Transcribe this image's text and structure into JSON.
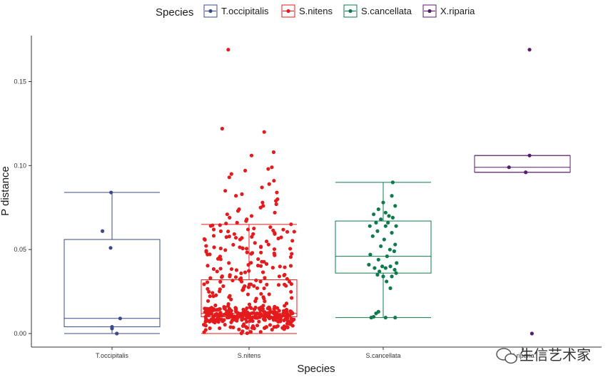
{
  "chart_data": {
    "type": "boxplot",
    "xlabel": "Species",
    "ylabel": "P distance",
    "ylim": [
      0.0,
      0.175
    ],
    "yticks": [
      "0.00",
      "0.05",
      "0.10",
      "0.15"
    ],
    "ytick_values": [
      0.0,
      0.05,
      0.1,
      0.15
    ],
    "legend": {
      "title": "Species",
      "position": "top"
    },
    "grid": false,
    "categories": [
      "T.occipitalis",
      "S.nitens",
      "S.cancellata",
      "X.riparia"
    ],
    "series": [
      {
        "name": "T.occipitalis",
        "color": "#3b4a8a",
        "box": {
          "whisker_low": 0.0,
          "q1": 0.004,
          "median": 0.009,
          "q3": 0.056,
          "whisker_high": 0.084
        },
        "points": [
          [
            -0.02,
            0.084
          ],
          [
            -0.2,
            0.061
          ],
          [
            -0.03,
            0.051
          ],
          [
            0.17,
            0.009
          ],
          [
            0.0,
            0.004
          ],
          [
            0.0,
            0.003
          ],
          [
            0.1,
            0.0
          ]
        ]
      },
      {
        "name": "S.nitens",
        "color": "#e41a1c",
        "box": {
          "whisker_low": 0.0,
          "q1": 0.01,
          "median": 0.012,
          "q3": 0.032,
          "whisker_high": 0.065
        },
        "outliers": [
          0.169,
          0.122,
          0.12,
          0.108,
          0.106,
          0.099,
          0.098,
          0.097,
          0.095,
          0.093,
          0.091,
          0.089,
          0.087,
          0.085,
          0.084,
          0.083,
          0.082,
          0.08,
          0.079,
          0.078,
          0.077,
          0.076,
          0.075,
          0.074,
          0.073,
          0.072,
          0.071,
          0.07,
          0.069,
          0.068,
          0.067,
          0.066
        ],
        "n_points": 430
      },
      {
        "name": "S.cancellata",
        "color": "#0f7a4c",
        "box": {
          "whisker_low": 0.0095,
          "q1": 0.036,
          "median": 0.046,
          "q3": 0.067,
          "whisker_high": 0.09
        },
        "points": [
          [
            0.2,
            0.09
          ],
          [
            0.18,
            0.082
          ],
          [
            0.0,
            0.078
          ],
          [
            0.25,
            0.076
          ],
          [
            -0.1,
            0.074
          ],
          [
            0.05,
            0.072
          ],
          [
            -0.2,
            0.071
          ],
          [
            0.12,
            0.07
          ],
          [
            0.2,
            0.069
          ],
          [
            -0.05,
            0.068
          ],
          [
            -0.15,
            0.066
          ],
          [
            0.1,
            0.066
          ],
          [
            -0.28,
            0.064
          ],
          [
            0.05,
            0.064
          ],
          [
            0.27,
            0.064
          ],
          [
            -0.12,
            0.061
          ],
          [
            0.18,
            0.06
          ],
          [
            -0.22,
            0.058
          ],
          [
            0.02,
            0.056
          ],
          [
            0.25,
            0.053
          ],
          [
            -0.05,
            0.052
          ],
          [
            0.14,
            0.05
          ],
          [
            0.23,
            0.049
          ],
          [
            -0.27,
            0.047
          ],
          [
            0.08,
            0.046
          ],
          [
            -0.1,
            0.044
          ],
          [
            0.28,
            0.042
          ],
          [
            -0.3,
            0.041
          ],
          [
            -0.02,
            0.04
          ],
          [
            0.15,
            0.04
          ],
          [
            -0.18,
            0.039
          ],
          [
            0.05,
            0.039
          ],
          [
            0.24,
            0.038
          ],
          [
            -0.08,
            0.037
          ],
          [
            0.27,
            0.036
          ],
          [
            -0.12,
            0.035
          ],
          [
            0.0,
            0.034
          ],
          [
            0.18,
            0.034
          ],
          [
            0.07,
            0.031
          ],
          [
            0.15,
            0.027
          ],
          [
            -0.1,
            0.013
          ],
          [
            -0.15,
            0.012
          ],
          [
            -0.2,
            0.01
          ],
          [
            -0.25,
            0.0095
          ],
          [
            0.05,
            0.0095
          ],
          [
            0.25,
            0.0095
          ]
        ]
      },
      {
        "name": "X.riparia",
        "color": "#5b1a6e",
        "box": {
          "whisker_low": 0.096,
          "q1": 0.096,
          "median": 0.099,
          "q3": 0.106,
          "whisker_high": 0.106
        },
        "points": [
          [
            0.15,
            0.169
          ],
          [
            0.15,
            0.106
          ],
          [
            -0.28,
            0.099
          ],
          [
            0.07,
            0.096
          ],
          [
            0.2,
            0.0
          ]
        ]
      }
    ]
  },
  "watermark": {
    "text": "生信艺术家",
    "icon": "wechat-icon"
  }
}
